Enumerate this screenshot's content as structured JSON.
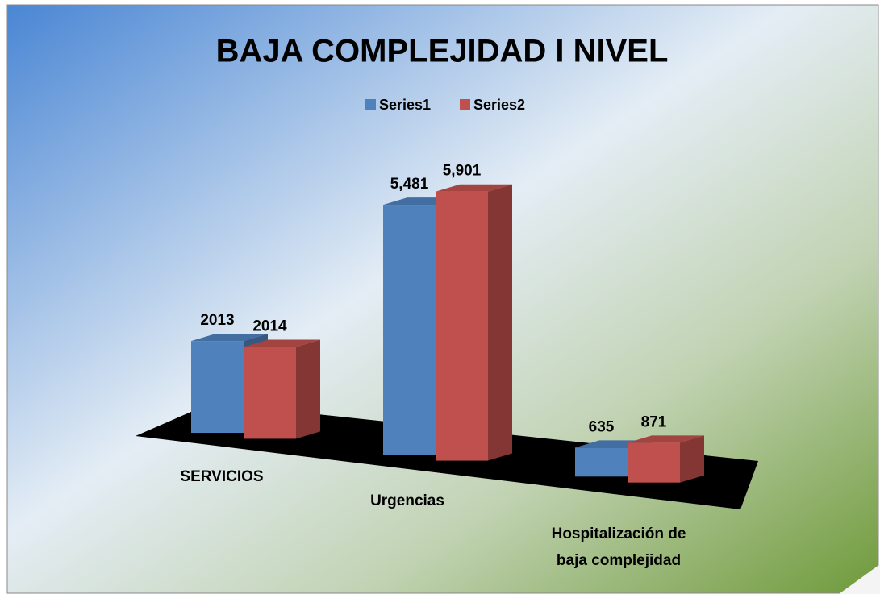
{
  "chart_data": {
    "type": "bar3d",
    "title": "BAJA COMPLEJIDAD  I  NIVEL",
    "categories": [
      "SERVICIOS",
      "Urgencias",
      "Hospitalización de baja complejidad"
    ],
    "series": [
      {
        "name": "Series1",
        "color": "#4f81bd",
        "values": [
          2013,
          5481,
          635
        ],
        "value_labels": [
          "2013",
          "5,481",
          "635"
        ]
      },
      {
        "name": "Series2",
        "color": "#c0504d",
        "values": [
          2014,
          5901,
          871
        ],
        "value_labels": [
          "2014",
          "5,901",
          "871"
        ]
      }
    ],
    "ylim": [
      0,
      7000
    ],
    "legend": "top"
  }
}
